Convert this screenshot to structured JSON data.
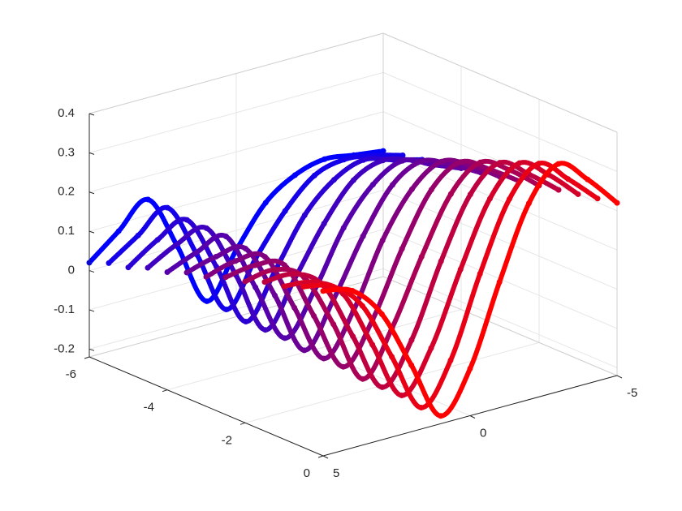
{
  "chart_data": {
    "type": "scatter3d",
    "x": [
      5,
      4,
      3,
      2,
      1,
      0,
      -1,
      -2,
      -3,
      -4,
      -5
    ],
    "series": [
      {
        "y": -6,
        "color": "#0000ff",
        "values": [
          0.02,
          0.08,
          0.14,
          0.0,
          -0.16,
          -0.05,
          0.05,
          0.1,
          0.12,
          0.11,
          0.1
        ]
      },
      {
        "y": -5.5,
        "color": "#1500ea",
        "values": [
          0.04,
          0.09,
          0.14,
          0.0,
          -0.16,
          -0.05,
          0.05,
          0.12,
          0.14,
          0.13,
          0.11
        ]
      },
      {
        "y": -5,
        "color": "#2b00d4",
        "values": [
          0.05,
          0.1,
          0.13,
          -0.01,
          -0.17,
          -0.06,
          0.06,
          0.13,
          0.16,
          0.14,
          0.12
        ]
      },
      {
        "y": -4.5,
        "color": "#4000bf",
        "values": [
          0.07,
          0.11,
          0.13,
          -0.01,
          -0.17,
          -0.06,
          0.06,
          0.15,
          0.18,
          0.16,
          0.13
        ]
      },
      {
        "y": -4,
        "color": "#5500aa",
        "values": [
          0.08,
          0.11,
          0.13,
          -0.02,
          -0.17,
          -0.07,
          0.07,
          0.16,
          0.2,
          0.17,
          0.14
        ]
      },
      {
        "y": -3.5,
        "color": "#6a0095",
        "values": [
          0.1,
          0.12,
          0.12,
          -0.02,
          -0.18,
          -0.07,
          0.07,
          0.18,
          0.22,
          0.19,
          0.15
        ]
      },
      {
        "y": -3,
        "color": "#80007f",
        "values": [
          0.11,
          0.13,
          0.12,
          -0.03,
          -0.18,
          -0.08,
          0.08,
          0.19,
          0.24,
          0.21,
          0.16
        ]
      },
      {
        "y": -2.5,
        "color": "#95006a",
        "values": [
          0.13,
          0.14,
          0.12,
          -0.03,
          -0.18,
          -0.08,
          0.08,
          0.21,
          0.26,
          0.22,
          0.17
        ]
      },
      {
        "y": -2,
        "color": "#aa0055",
        "values": [
          0.14,
          0.15,
          0.11,
          -0.03,
          -0.19,
          -0.08,
          0.08,
          0.22,
          0.28,
          0.24,
          0.18
        ]
      },
      {
        "y": -1.5,
        "color": "#bf0040",
        "values": [
          0.16,
          0.16,
          0.11,
          -0.04,
          -0.19,
          -0.09,
          0.09,
          0.24,
          0.3,
          0.25,
          0.19
        ]
      },
      {
        "y": -1,
        "color": "#d5002a",
        "values": [
          0.17,
          0.16,
          0.11,
          -0.04,
          -0.19,
          -0.09,
          0.09,
          0.25,
          0.32,
          0.27,
          0.2
        ]
      },
      {
        "y": -0.5,
        "color": "#ea0015",
        "values": [
          0.19,
          0.17,
          0.1,
          -0.05,
          -0.2,
          -0.1,
          0.1,
          0.27,
          0.34,
          0.28,
          0.21
        ]
      },
      {
        "y": 0,
        "color": "#ff0000",
        "values": [
          0.2,
          0.18,
          0.1,
          -0.05,
          -0.2,
          -0.1,
          0.1,
          0.28,
          0.36,
          0.3,
          0.22
        ]
      }
    ],
    "xlim": [
      -5,
      5
    ],
    "xdir": "reverse",
    "xticks": [
      5,
      0,
      -5
    ],
    "ylim": [
      -6,
      0
    ],
    "yticks": [
      -6,
      -4,
      -2,
      0
    ],
    "zlim": [
      -0.22,
      0.4
    ],
    "zticks": [
      -0.2,
      -0.1,
      0,
      0.1,
      0.2,
      0.3,
      0.4
    ],
    "grid": true
  }
}
